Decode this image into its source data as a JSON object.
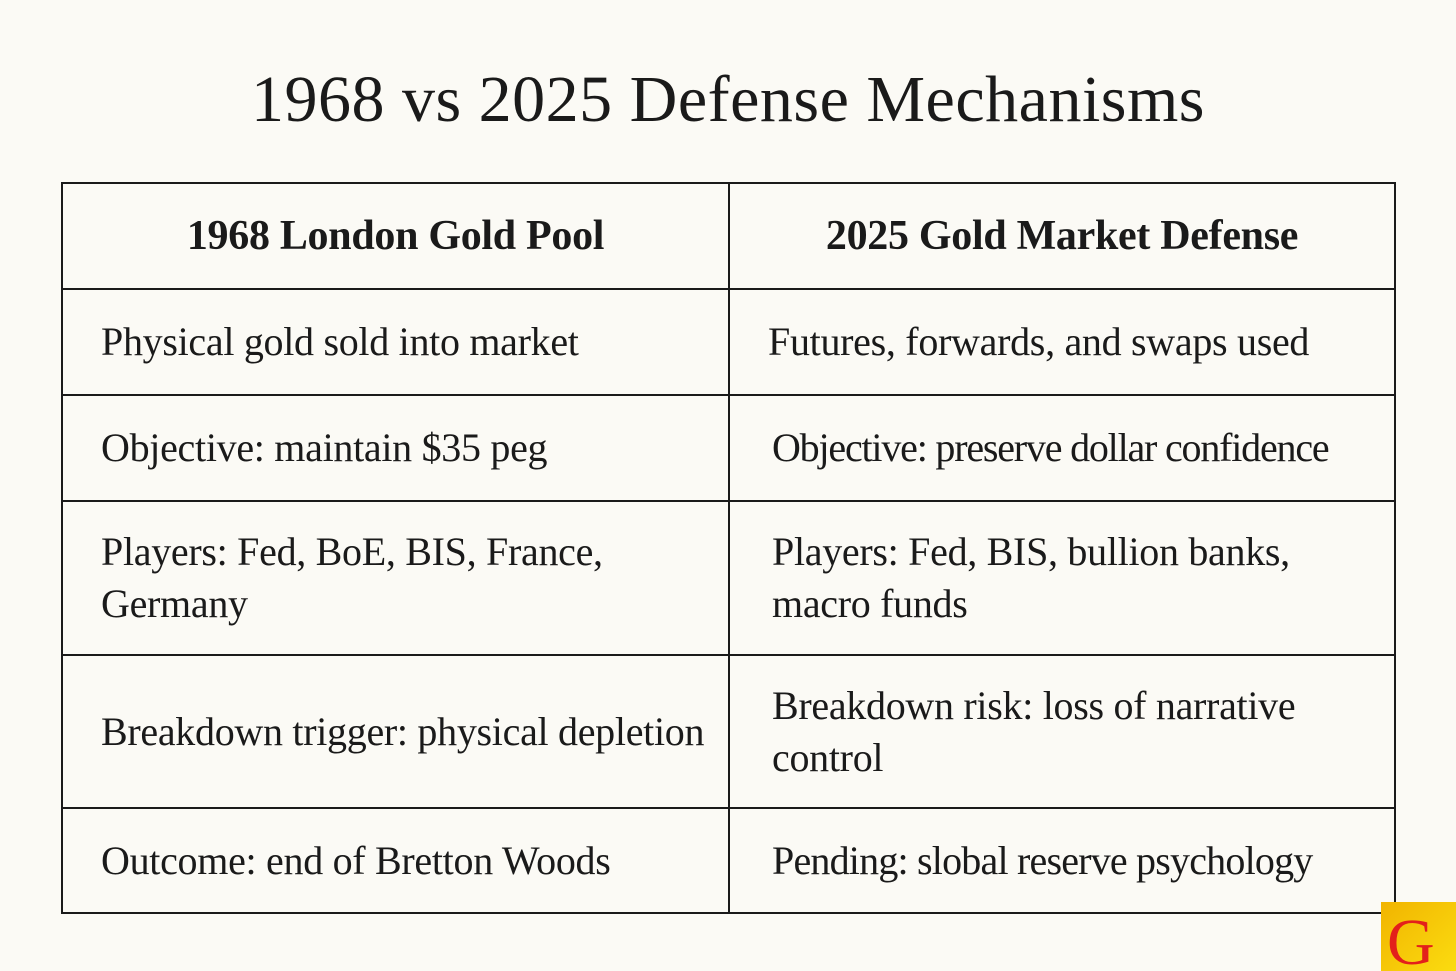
{
  "title": "1968 vs 2025 Defense Mechanisms",
  "table": {
    "headers": [
      "1968 London Gold Pool",
      "2025 Gold Market Defense"
    ],
    "rows": [
      [
        "Physical gold sold into market",
        "Futures, forwards, and swaps used"
      ],
      [
        "Objective: maintain $35 peg",
        "Objective: preserve dollar confidence"
      ],
      [
        "Players: Fed, BoE, BIS, France, Germany",
        "Players: Fed, BIS, bullion banks, macro funds"
      ],
      [
        "Breakdown trigger: physical depletion",
        "Breakdown risk: loss of narrative control"
      ],
      [
        "Outcome: end of Bretton Woods",
        "Pending: slobal reserve psychology"
      ]
    ]
  },
  "logo": {
    "letter": "G",
    "background": "#f5c400",
    "color": "#e3201b"
  }
}
